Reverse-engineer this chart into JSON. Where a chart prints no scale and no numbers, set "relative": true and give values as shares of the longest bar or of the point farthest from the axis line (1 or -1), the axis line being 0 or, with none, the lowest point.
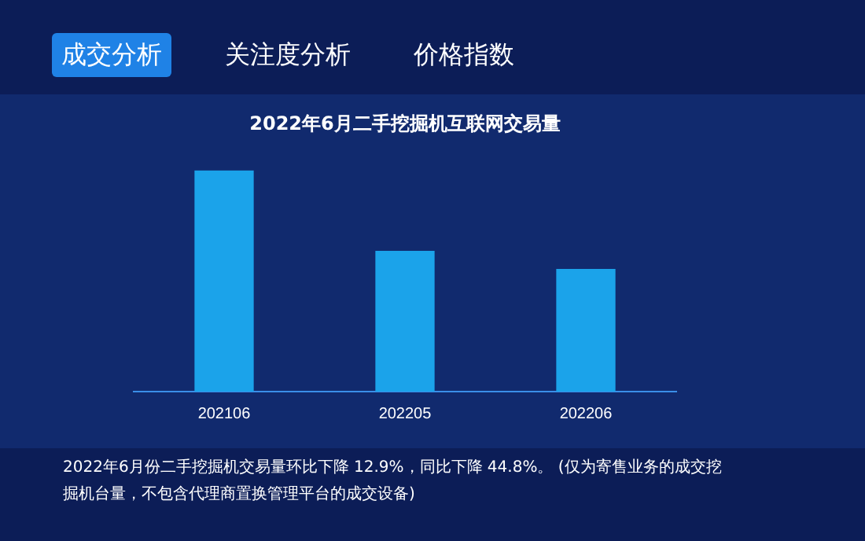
{
  "chart_data": {
    "type": "bar",
    "title": "2022年6月二手挖掘机互联网交易量",
    "categories": [
      "202106",
      "202205",
      "202206"
    ],
    "values": [
      1,
      0.634,
      0.552
    ],
    "color": "#1ba3ea",
    "relative": true,
    "grid": false,
    "legend": false,
    "annotations": [
      "成交分析",
      "关注度分析",
      "价格指数",
      "2022年6月份二手挖掘机交易量环比下降 12.9%，同比下降 44.8%。 (仅为寄售业务的成交挖掘机台量，不包含代理商置换管理平台的成交设备)"
    ]
  }
}
